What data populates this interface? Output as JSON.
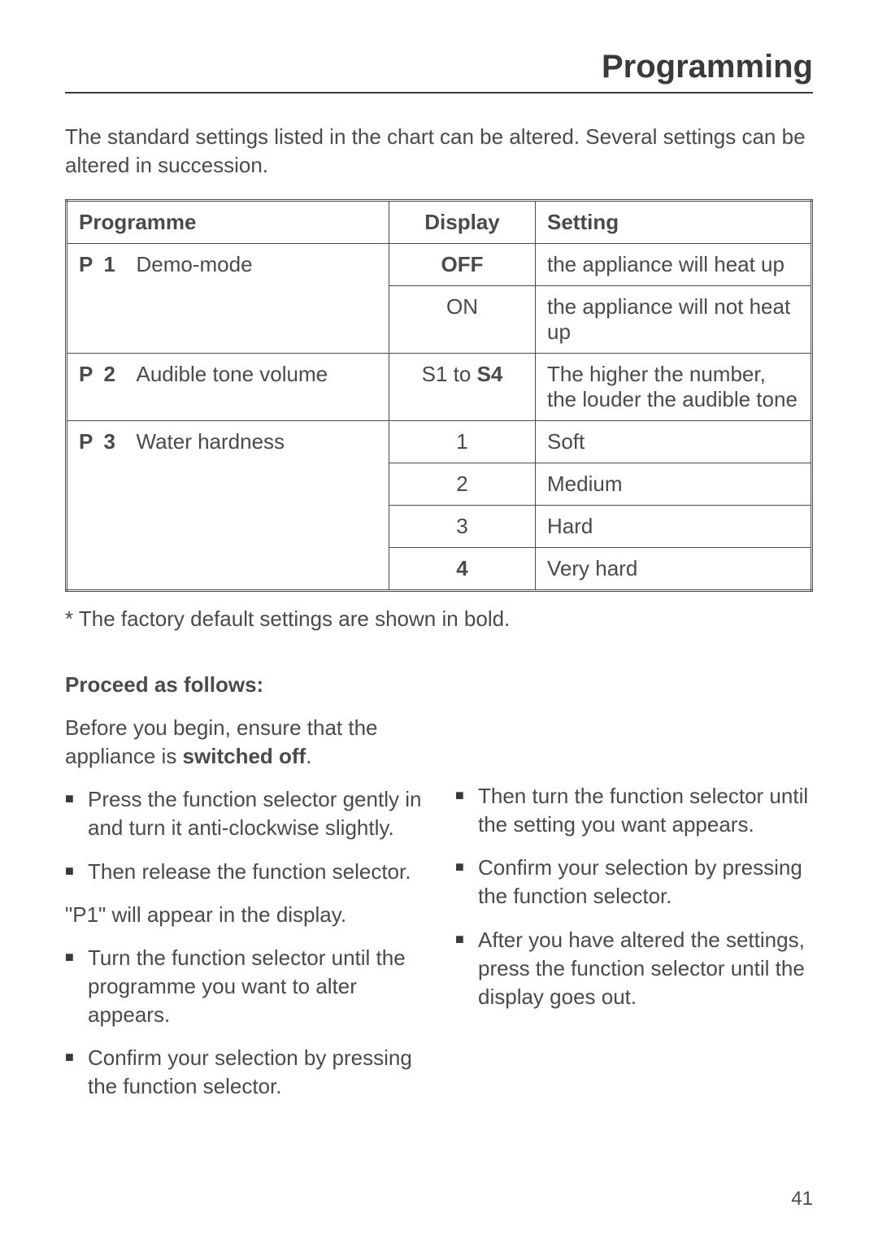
{
  "page": {
    "title": "Programming",
    "intro": "The standard settings listed in the chart can be altered. Several settings can be altered in succession.",
    "footnote": "* The factory default settings are shown in bold.",
    "page_number": "41"
  },
  "table": {
    "headers": {
      "programme": "Programme",
      "display": "Display",
      "setting": "Setting"
    },
    "rows": [
      {
        "code": "P",
        "num": "1",
        "name": "Demo-mode",
        "subrows": [
          {
            "display": "OFF",
            "display_bold": true,
            "setting": "the appliance will heat up"
          },
          {
            "display": "ON",
            "display_bold": false,
            "setting": "the appliance will not heat up"
          }
        ]
      },
      {
        "code": "P",
        "num": "2",
        "name": "Audible tone volume",
        "subrows": [
          {
            "display_prefix": "S1 to ",
            "display_bold_part": "S4",
            "setting": "The higher the number, the louder the audible tone"
          }
        ]
      },
      {
        "code": "P",
        "num": "3",
        "name": "Water hardness",
        "subrows": [
          {
            "display": "1",
            "display_bold": false,
            "setting": "Soft"
          },
          {
            "display": "2",
            "display_bold": false,
            "setting": "Medium"
          },
          {
            "display": "3",
            "display_bold": false,
            "setting": "Hard"
          },
          {
            "display": "4",
            "display_bold": true,
            "setting": "Very hard"
          }
        ]
      }
    ]
  },
  "instructions": {
    "heading": "Proceed as follows:",
    "preamble_line1": "Before you begin, ensure that the appliance is ",
    "preamble_bold": "switched off",
    "preamble_suffix": ".",
    "left_steps": [
      "Press the function selector gently in and turn it anti-clockwise slightly.",
      "Then release the function selector."
    ],
    "left_mid_text": "\"P1\" will appear in the display.",
    "left_steps2": [
      "Turn the function selector until the programme you want to alter appears.",
      "Confirm your selection by pressing the function selector."
    ],
    "right_steps": [
      "Then turn the function selector until the setting you want appears.",
      "Confirm your selection by pressing the function selector.",
      "After you have altered the settings, press the function selector until the display goes out."
    ]
  }
}
